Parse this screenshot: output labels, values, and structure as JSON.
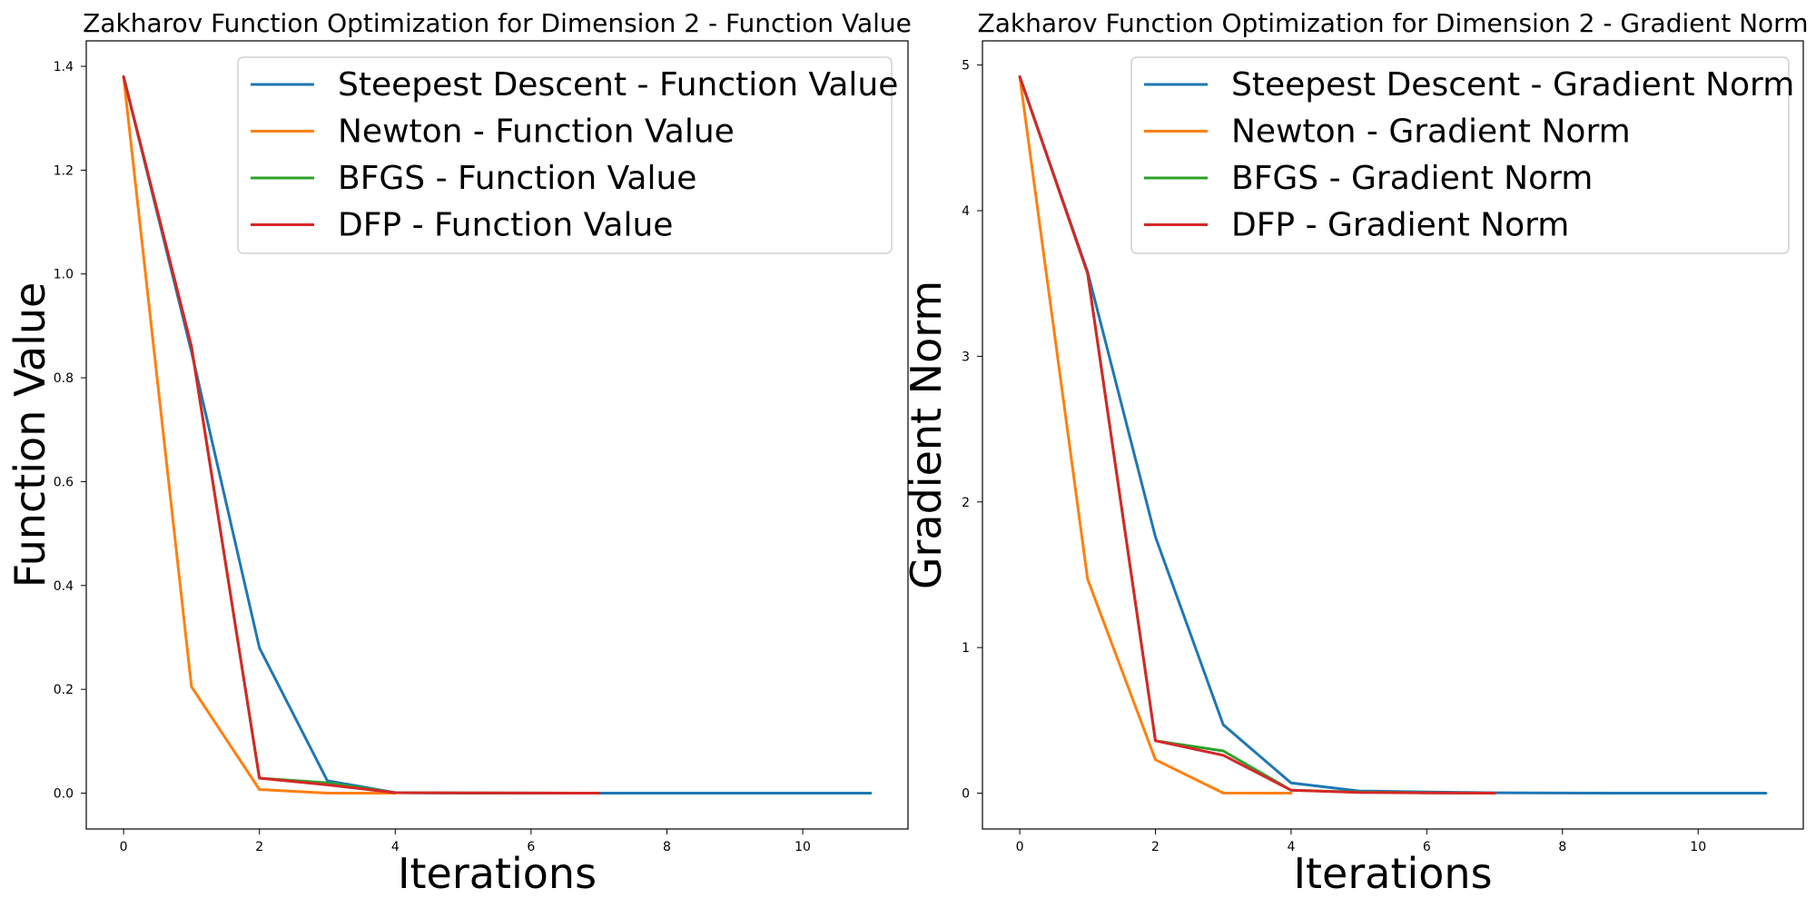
{
  "chart_data": [
    {
      "type": "line",
      "title": "Zakharov Function Optimization for Dimension 2 - Function Value",
      "xlabel": "Iterations",
      "ylabel": "Function Value",
      "xlim": [
        -0.55,
        11.55
      ],
      "ylim": [
        -0.069,
        1.449
      ],
      "xticks": [
        0,
        2,
        4,
        6,
        8,
        10
      ],
      "yticks": [
        0.0,
        0.2,
        0.4,
        0.6,
        0.8,
        1.0,
        1.2,
        1.4
      ],
      "ytick_labels": [
        "0.0",
        "0.2",
        "0.4",
        "0.6",
        "0.8",
        "1.0",
        "1.2",
        "1.4"
      ],
      "grid": false,
      "legend_position": "top-right",
      "series": [
        {
          "name": "Steepest Descent - Function Value",
          "color": "#1f77b4",
          "x": [
            0,
            1,
            2,
            3,
            4,
            5,
            6,
            7,
            8,
            9,
            10,
            11
          ],
          "y": [
            1.38,
            0.85,
            0.28,
            0.024,
            0.001,
            0,
            0,
            0,
            0,
            0,
            0,
            0
          ]
        },
        {
          "name": "Newton - Function Value",
          "color": "#ff7f0e",
          "x": [
            0,
            1,
            2,
            3,
            4
          ],
          "y": [
            1.38,
            0.205,
            0.007,
            0.0,
            0.0
          ]
        },
        {
          "name": "BFGS - Function Value",
          "color": "#2ca02c",
          "x": [
            0,
            1,
            2,
            3,
            4,
            5,
            6,
            7
          ],
          "y": [
            1.38,
            0.86,
            0.029,
            0.02,
            0.001,
            0.0005,
            0.0002,
            0.0
          ]
        },
        {
          "name": "DFP - Function Value",
          "color": "#d62728",
          "x": [
            0,
            1,
            2,
            3,
            4,
            5,
            6,
            7
          ],
          "y": [
            1.38,
            0.86,
            0.029,
            0.016,
            0.001,
            0.0005,
            0.0002,
            0.0
          ]
        }
      ]
    },
    {
      "type": "line",
      "title": "Zakharov Function Optimization for Dimension 2 - Gradient Norm",
      "xlabel": "Iterations",
      "ylabel": "Gradient Norm",
      "xlim": [
        -0.55,
        11.55
      ],
      "ylim": [
        -0.246,
        5.166
      ],
      "xticks": [
        0,
        2,
        4,
        6,
        8,
        10
      ],
      "yticks": [
        0,
        1,
        2,
        3,
        4,
        5
      ],
      "ytick_labels": [
        "0",
        "1",
        "2",
        "3",
        "4",
        "5"
      ],
      "grid": false,
      "legend_position": "top-right",
      "series": [
        {
          "name": "Steepest Descent - Gradient Norm",
          "color": "#1f77b4",
          "x": [
            0,
            1,
            2,
            3,
            4,
            5,
            6,
            7,
            8,
            9,
            10,
            11
          ],
          "y": [
            4.92,
            3.58,
            1.76,
            0.47,
            0.07,
            0.015,
            0.008,
            0.003,
            0.001,
            0,
            0,
            0
          ]
        },
        {
          "name": "Newton - Gradient Norm",
          "color": "#ff7f0e",
          "x": [
            0,
            1,
            2,
            3,
            4
          ],
          "y": [
            4.92,
            1.47,
            0.23,
            0.001,
            0.0
          ]
        },
        {
          "name": "BFGS - Gradient Norm",
          "color": "#2ca02c",
          "x": [
            0,
            1,
            2,
            3,
            4,
            5,
            6,
            7
          ],
          "y": [
            4.92,
            3.57,
            0.36,
            0.29,
            0.02,
            0.007,
            0.003,
            0.0
          ]
        },
        {
          "name": "DFP - Gradient Norm",
          "color": "#d62728",
          "x": [
            0,
            1,
            2,
            3,
            4,
            5,
            6,
            7
          ],
          "y": [
            4.92,
            3.57,
            0.36,
            0.26,
            0.02,
            0.005,
            0.002,
            0.0
          ]
        }
      ]
    }
  ]
}
